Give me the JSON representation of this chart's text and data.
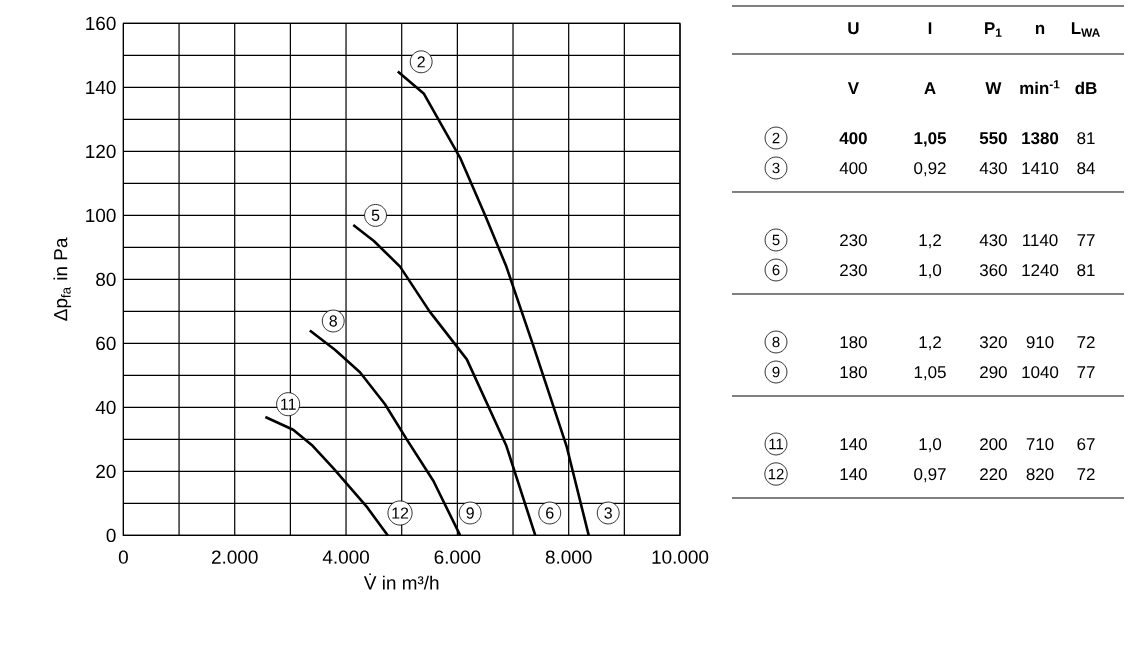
{
  "chart_data": [
    {
      "type": "line",
      "xlabel": "V̇ in m³/h",
      "ylabel": "Δp$_{fa}$ in Pa",
      "xlim": [
        0,
        10000
      ],
      "ylim": [
        0,
        160
      ],
      "xticks": [
        0,
        {
          "value": 1000,
          "label": null
        },
        {
          "value": 2000,
          "label": "2.000"
        },
        {
          "value": 3000,
          "label": null
        },
        {
          "value": 4000,
          "label": "4.000"
        },
        {
          "value": 5000,
          "label": null
        },
        {
          "value": 6000,
          "label": "6.000"
        },
        {
          "value": 7000,
          "label": null
        },
        {
          "value": 8000,
          "label": "8.000"
        },
        {
          "value": 9000,
          "label": null
        },
        {
          "value": 10000,
          "label": "10.000"
        }
      ],
      "yticks": [
        0,
        {
          "value": 10,
          "label": null
        },
        20,
        {
          "value": 30,
          "label": null
        },
        40,
        {
          "value": 50,
          "label": null
        },
        60,
        {
          "value": 70,
          "label": null
        },
        80,
        {
          "value": 90,
          "label": null
        },
        100,
        {
          "value": 110,
          "label": null
        },
        120,
        {
          "value": 130,
          "label": null
        },
        140,
        {
          "value": 150,
          "label": null
        },
        160
      ],
      "grid": true,
      "marker": "none",
      "line_style": "solid",
      "series": [
        {
          "color": "#000000",
          "x": [
            4930,
            5400,
            6050,
            6500,
            6880,
            7370,
            7960,
            8360
          ],
          "values": [
            145,
            138,
            118,
            100,
            84,
            59,
            28,
            0
          ]
        },
        {
          "color": "#000000",
          "x": [
            4130,
            4500,
            4970,
            5500,
            6170,
            6880,
            7400
          ],
          "values": [
            97,
            92,
            84,
            70,
            55,
            28,
            0
          ]
        },
        {
          "color": "#000000",
          "x": [
            3350,
            3800,
            4250,
            4700,
            5090,
            5570,
            6050
          ],
          "values": [
            64,
            58,
            51,
            41,
            30,
            17,
            0
          ]
        },
        {
          "color": "#000000",
          "x": [
            2550,
            3050,
            3400,
            3770,
            4370,
            4750
          ],
          "values": [
            37,
            33,
            28,
            21,
            9,
            0
          ]
        }
      ],
      "annotations": [
        {
          "text": "2",
          "x": 5350,
          "y": 148
        },
        {
          "text": "3",
          "x": 8710,
          "y": 7
        },
        {
          "text": "5",
          "x": 4530,
          "y": 100
        },
        {
          "text": "6",
          "x": 7660,
          "y": 7
        },
        {
          "text": "8",
          "x": 3770,
          "y": 67
        },
        {
          "text": "9",
          "x": 6230,
          "y": 7
        },
        {
          "text": "11",
          "x": 2960,
          "y": 41
        },
        {
          "text": "12",
          "x": 4970,
          "y": 7
        }
      ]
    },
    {
      "type": "other",
      "annotations": [
        "U",
        "I",
        "P$_{1}$",
        "n",
        "L$_{WA}$",
        "V",
        "A",
        "W",
        "min$^{-1}$",
        "dB",
        "2",
        "**400**",
        "**1,05**",
        "**550**",
        "**1380**",
        "81",
        "3",
        "400",
        "0,92",
        "430",
        "1410",
        "84",
        "5",
        "230",
        "1,2",
        "430",
        "1140",
        "77",
        "6",
        "230",
        "1,0",
        "360",
        "1240",
        "81",
        "8",
        "180",
        "1,2",
        "320",
        "910",
        "72",
        "9",
        "180",
        "1,05",
        "290",
        "1040",
        "77",
        "11",
        "140",
        "1,0",
        "200",
        "710",
        "67",
        "12",
        "140",
        "0,97",
        "220",
        "820",
        "72"
      ]
    }
  ]
}
